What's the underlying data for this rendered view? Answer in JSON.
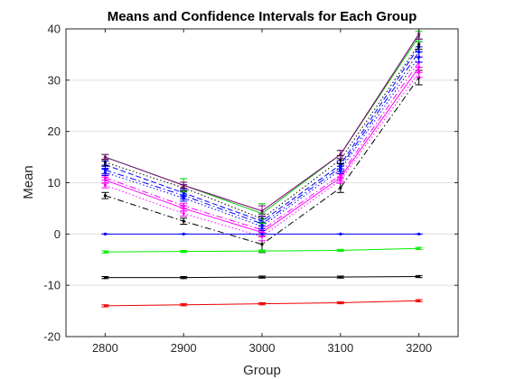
{
  "chart_data": {
    "type": "line",
    "title": "Means and Confidence Intervals for Each Group",
    "xlabel": "Group",
    "ylabel": "Mean",
    "x": [
      2800,
      2900,
      3000,
      3100,
      3200
    ],
    "xlim": [
      2750,
      3250
    ],
    "ylim": [
      -20,
      40
    ],
    "xticks": [
      "2800",
      "2900",
      "3000",
      "3100",
      "3200"
    ],
    "yticks": [
      "-20",
      "-10",
      "0",
      "10",
      "20",
      "30",
      "40"
    ],
    "grid": "horizontal",
    "series": [
      {
        "color": "#000000",
        "style": "dash-dot",
        "values": [
          7.5,
          2.5,
          -2.0,
          9.0,
          30.5
        ],
        "err": [
          0.6,
          0.6,
          1.6,
          0.9,
          1.4
        ]
      },
      {
        "color": "#ff00ff",
        "style": "dotted",
        "values": [
          9.5,
          4.0,
          -0.5,
          10.5,
          31.5
        ],
        "err": [
          0.5,
          0.5,
          0.8,
          0.6,
          1.0
        ]
      },
      {
        "color": "#ff00ff",
        "style": "solid",
        "values": [
          10.5,
          5.0,
          0.3,
          11.0,
          32.5
        ],
        "err": [
          0.6,
          0.5,
          0.8,
          0.7,
          1.0
        ]
      },
      {
        "color": "#ff00ff",
        "style": "dash-dot",
        "values": [
          11.0,
          5.5,
          0.8,
          11.5,
          33.5
        ],
        "err": [
          0.5,
          0.5,
          0.8,
          0.7,
          1.0
        ]
      },
      {
        "color": "#0000ff",
        "style": "dotted",
        "values": [
          12.0,
          7.0,
          1.5,
          12.5,
          34.5
        ],
        "err": [
          0.6,
          0.6,
          0.8,
          0.7,
          1.0
        ]
      },
      {
        "color": "#0000ff",
        "style": "dash-dot",
        "values": [
          12.5,
          7.5,
          2.0,
          13.0,
          35.5
        ],
        "err": [
          0.7,
          0.7,
          0.9,
          0.8,
          1.0
        ]
      },
      {
        "color": "#0000ff",
        "style": "dashed",
        "values": [
          13.5,
          8.0,
          2.5,
          13.5,
          36.5
        ],
        "err": [
          0.7,
          0.7,
          0.9,
          0.8,
          1.0
        ]
      },
      {
        "color": "#000000",
        "style": "dotted",
        "values": [
          14.0,
          9.0,
          3.0,
          14.5,
          37.0
        ],
        "err": [
          0.6,
          0.6,
          0.9,
          0.8,
          1.0
        ]
      },
      {
        "color": "#00cc00",
        "style": "solid",
        "values": [
          15.0,
          9.5,
          4.0,
          15.5,
          38.5
        ],
        "err": [
          0.5,
          1.3,
          1.9,
          0.8,
          1.0
        ]
      },
      {
        "color": "#800080",
        "style": "solid",
        "values": [
          15.0,
          9.5,
          4.5,
          15.5,
          39.0
        ],
        "err": [
          0.5,
          0.6,
          1.0,
          0.8,
          1.0
        ]
      },
      {
        "color": "#0000ff",
        "style": "solid",
        "values": [
          0.0,
          0.0,
          0.0,
          0.0,
          0.0
        ],
        "err": [
          0.0,
          0.0,
          0.0,
          0.0,
          0.0
        ]
      },
      {
        "color": "#00ee00",
        "style": "solid",
        "values": [
          -3.5,
          -3.4,
          -3.3,
          -3.2,
          -2.8
        ],
        "err": [
          0.2,
          0.2,
          0.2,
          0.2,
          0.2
        ]
      },
      {
        "color": "#000000",
        "style": "solid",
        "values": [
          -8.5,
          -8.5,
          -8.4,
          -8.4,
          -8.3
        ],
        "err": [
          0.2,
          0.2,
          0.2,
          0.2,
          0.2
        ]
      },
      {
        "color": "#ee0000",
        "style": "solid",
        "values": [
          -14.0,
          -13.8,
          -13.6,
          -13.4,
          -13.0
        ],
        "err": [
          0.2,
          0.2,
          0.2,
          0.2,
          0.2
        ]
      }
    ]
  }
}
